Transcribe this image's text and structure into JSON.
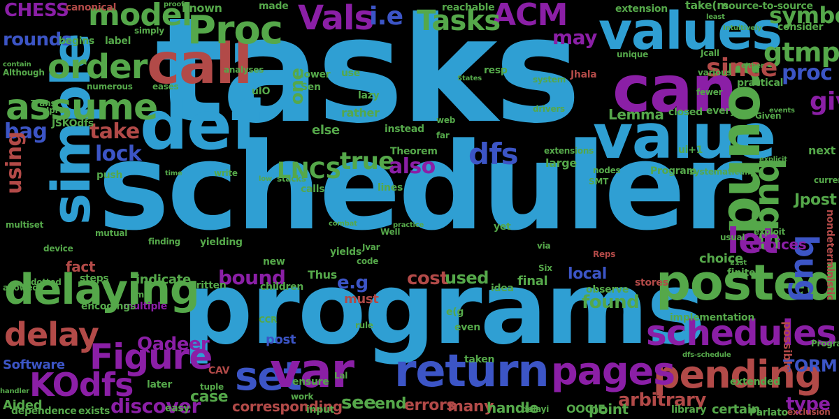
{
  "words": {
    "tasks": "tasks",
    "scheduler": "scheduler",
    "programs": "programs",
    "def": "def",
    "call": "call",
    "can": "can",
    "values": "values",
    "value": "value",
    "round": "round",
    "simple": "simple",
    "posted": "posted",
    "delaying": "delaying",
    "schedules": "schedules",
    "pending": "pending",
    "pages": "pages",
    "return": "return",
    "set": "set",
    "var": "var",
    "proc_cap": "Proc",
    "vals": "Vals",
    "model": "model",
    "order": "order",
    "assume": "assume",
    "figure": "Figure",
    "kodfs": "KOdfs",
    "delay": "delay",
    "bugs": "bugs",
    "bug": "bug",
    "let": "let",
    "lncs": "LNCS",
    "dfs": "dfs",
    "acm": "ACM",
    "gtmp": "gtmp",
    "symbolic": "symbolic",
    "since": "since",
    "give": "give",
    "proc": "proc",
    "ie": "i.e",
    "tasks_cap": "Tasks",
    "chess": "CHESS",
    "rounds": "rounds",
    "bag": "bag",
    "take": "take",
    "lock": "lock",
    "using": "using",
    "true": "true",
    "also": "also",
    "bound": "bound",
    "found": "found",
    "cost": "cost",
    "used": "used",
    "eg": "e.g",
    "qadeer": "Qadeer",
    "discover": "discover",
    "case": "case",
    "software": "Software",
    "errors": "errors",
    "see": "see",
    "end": "end",
    "many": "many",
    "handle": "handle",
    "arbitrary": "arbitrary",
    "point": "point",
    "type": "type",
    "torm": "TORM",
    "corresponding": "corresponding",
    "oogie": "OOGIE",
    "certain": "certain",
    "choice": "choice",
    "choices": "choices",
    "local": "local",
    "may": "may",
    "one": "one",
    "known": "known",
    "made": "made",
    "proof": "proof",
    "canonical": "canonical",
    "extension": "extension",
    "reachable": "reachable",
    "source": "source-to-source",
    "consider": "consider",
    "jpost": "Jpost",
    "next": "next",
    "current": "current",
    "lemma": "Lemma",
    "every": "every",
    "closed": "closed",
    "theorem": "Theorem",
    "program": "Program",
    "systematically": "systematically",
    "fact": "fact",
    "thus": "Thus",
    "post": "post",
    "must": "must",
    "even": "even",
    "final": "final",
    "idea": "idea",
    "indicate": "indicate",
    "steps": "steps",
    "written": "written",
    "multiple": "multiple",
    "encodings": "encodings",
    "aided": "Aided",
    "dependence": "dependence",
    "exists": "exists",
    "easy": "easy",
    "later": "later",
    "cav": "CAV",
    "implementation": "implementation",
    "possible": "possible",
    "library": "library",
    "parlato": "Parlato",
    "programs_small": "Programs",
    "nondeterministic": "nondeterministic",
    "finite": "finite",
    "observe": "observe",
    "stores": "stores",
    "extended": "extended",
    "exclusion": "exclusion",
    "jhala": "Jhala",
    "unique": "unique",
    "various": "various",
    "practical": "practical",
    "either": "either",
    "system": "system",
    "large": "large",
    "lower": "lower",
    "use": "use",
    "rather": "rather",
    "instead": "instead",
    "else": "else",
    "lazy": "lazy",
    "resp": "resp",
    "taken": "taken",
    "ensure": "ensure",
    "input": "input",
    "work": "work",
    "limit": "limit",
    "children": "children",
    "new": "new",
    "code": "code",
    "lines": "lines",
    "calls": "calls",
    "stacks": "stacks",
    "push": "push",
    "label": "label",
    "begins": "begins",
    "simply": "simply",
    "analyses": "analyses",
    "numerous": "numerous",
    "although": "Although",
    "contain": "contain",
    "jprec": "Jproc",
    "trans": "Trans",
    "jskodfs": "JSKOdfs",
    "eases": "eases",
    "drivers": "drivers",
    "sen": "Sen",
    "uio": "uIO",
    "ui1": "ui+1",
    "extensions": "extensions",
    "smt": "SMT",
    "nodes": "nodes",
    "fewer": "fewer",
    "given": "Given",
    "far": "far",
    "web": "web",
    "tuple": "tuple",
    "ccr": "CCR",
    "reps": "Reps",
    "usual": "usual",
    "yields": "yields",
    "yielding": "yielding",
    "finding": "finding",
    "mutual": "mutual",
    "multiset": "multiset",
    "device": "device",
    "allowed": "allowed",
    "dotted": "dotted",
    "lal": "Lal",
    "rule": "rule",
    "well": "Well",
    "six": "Six",
    "jvar": "Jvar",
    "yet": "yet",
    "via": "via",
    "exploit": "exploit",
    "take_m": "take(m",
    "e_g2": "e(g",
    "jcall": "Jcall",
    "dfs_schedule": "dfs-schedule",
    "handler": "handler",
    "delayi": "delayi",
    "time": "time",
    "write": "write",
    "low": "low",
    "21st": "21st",
    "practice": "practice",
    "intuitively": "Intuitively",
    "states": "States",
    "explicit": "explicit",
    "least": "least",
    "combat": "combat",
    "events": "events"
  }
}
